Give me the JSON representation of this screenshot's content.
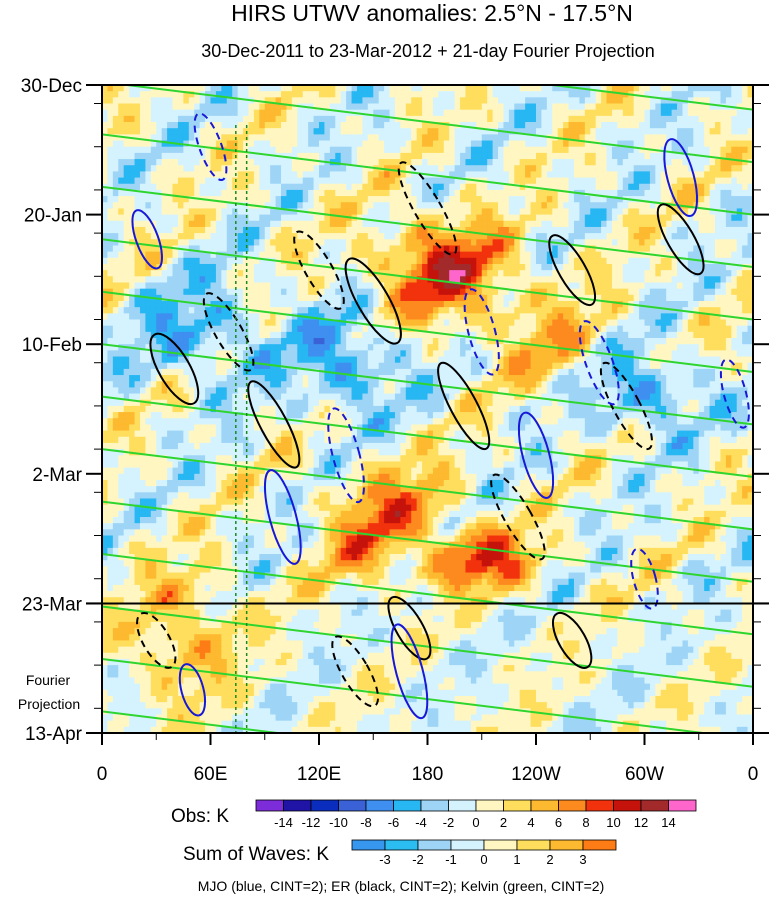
{
  "chart_data": {
    "type": "heatmap",
    "title": "HIRS UTWV anomalies: 2.5°N - 17.5°N",
    "subtitle": "30-Dec-2011 to 23-Mar-2012 + 21-day Fourier Projection",
    "x_tick_labels": [
      "0",
      "60E",
      "120E",
      "180",
      "120W",
      "60W",
      "0"
    ],
    "x_tick_lon": [
      0,
      60,
      120,
      180,
      240,
      300,
      360
    ],
    "y_tick_labels": [
      "30-Dec",
      "20-Jan",
      "10-Feb",
      "2-Mar",
      "23-Mar",
      "13-Apr"
    ],
    "y_tick_day": [
      0,
      21,
      42,
      63,
      84,
      105
    ],
    "projection_start_day": 84,
    "projection_label": [
      "Fourier",
      "Projection"
    ],
    "obs_label": "Obs: K",
    "obs_colors": [
      "#7d2cd9",
      "#1f14a6",
      "#0b2dbe",
      "#3a62d6",
      "#3e8ff0",
      "#27b7f3",
      "#9ed4f5",
      "#d4f3ff",
      "#fff6c2",
      "#fede5c",
      "#fdb92f",
      "#fd8a1e",
      "#f2320c",
      "#c5130b",
      "#a32a2a",
      "#ff66cc"
    ],
    "obs_levels": [
      "-14",
      "-12",
      "-10",
      "-8",
      "-6",
      "-4",
      "-2",
      "0",
      "2",
      "4",
      "6",
      "8",
      "10",
      "12",
      "14"
    ],
    "waves_label": "Sum of Waves: K",
    "waves_colors": [
      "#3796ee",
      "#2bbcf2",
      "#9ed4f5",
      "#d4f3ff",
      "#fff6c2",
      "#fede5c",
      "#fdb92f",
      "#fd7c16"
    ],
    "waves_levels": [
      "-3",
      "-2",
      "-1",
      "0",
      "1",
      "2",
      "3"
    ],
    "contour_series": [
      {
        "name": "MJO",
        "color": "#1818d8"
      },
      {
        "name": "ER",
        "color": "#000000"
      },
      {
        "name": "Kelvin",
        "color": "#2ed52e"
      }
    ],
    "footer": "MJO (blue, CINT=2); ER (black, CINT=2); Kelvin (green, CINT=2)"
  }
}
